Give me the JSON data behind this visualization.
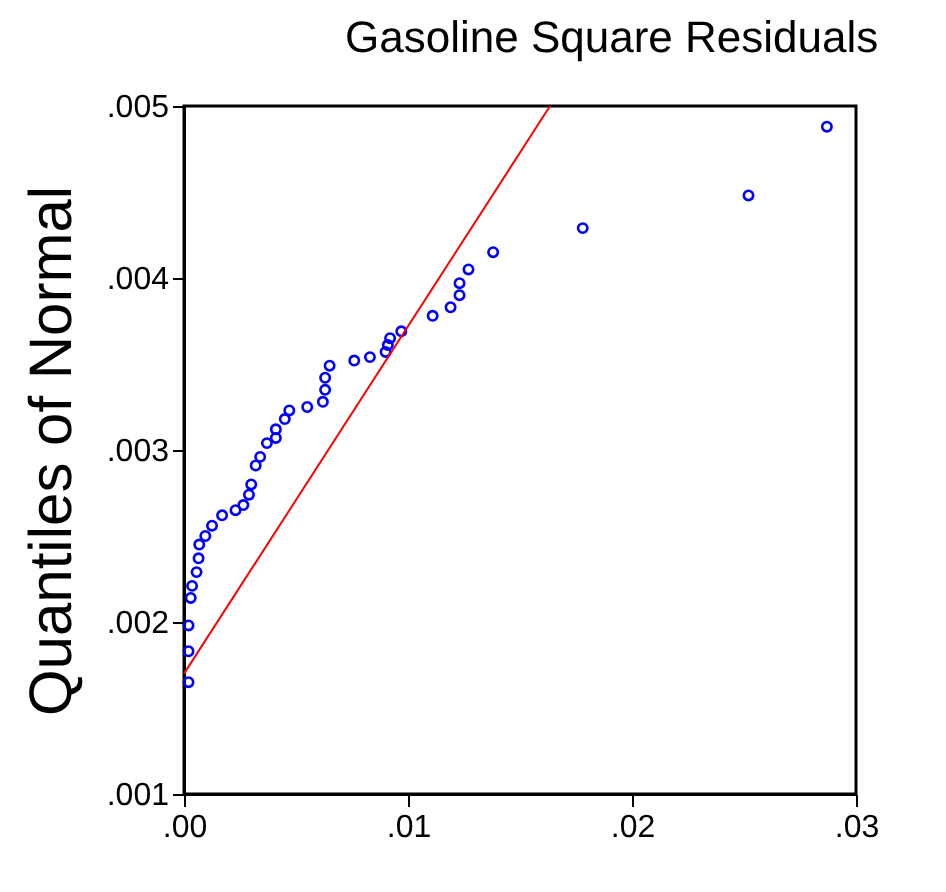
{
  "chart_data": {
    "type": "scatter",
    "title": "Gasoline Square Residuals",
    "ylabel": "Quantiles of Normal",
    "xlim": [
      0,
      0.03
    ],
    "ylim": [
      0.001,
      0.005
    ],
    "xticks": [
      {
        "value": 0,
        "label": ".00"
      },
      {
        "value": 0.01,
        "label": ".01"
      },
      {
        "value": 0.02,
        "label": ".02"
      },
      {
        "value": 0.03,
        "label": ".03"
      }
    ],
    "yticks": [
      {
        "value": 0.001,
        "label": ".001"
      },
      {
        "value": 0.002,
        "label": ".002"
      },
      {
        "value": 0.003,
        "label": ".003"
      },
      {
        "value": 0.004,
        "label": ".004"
      },
      {
        "value": 0.005,
        "label": ".005"
      }
    ],
    "grid": false,
    "series": [
      {
        "marker": "circle",
        "color": "#0000ff",
        "x": [
          0.0002,
          0.0002,
          0.0002,
          0.0003,
          0.00036,
          0.00056,
          0.00065,
          0.00068,
          0.00095,
          0.00125,
          0.0017,
          0.0023,
          0.00265,
          0.0029,
          0.003,
          0.0032,
          0.0034,
          0.0037,
          0.0041,
          0.0041,
          0.0045,
          0.0047,
          0.0055,
          0.0062,
          0.0063,
          0.0063,
          0.0065,
          0.0076,
          0.0083,
          0.009,
          0.0091,
          0.0092,
          0.0097,
          0.0111,
          0.0119,
          0.0123,
          0.0123,
          0.0127,
          0.0138,
          0.0178,
          0.0252,
          0.0287
        ],
        "values": [
          0.00165,
          0.00183,
          0.00198,
          0.00214,
          0.00221,
          0.00229,
          0.00237,
          0.00245,
          0.0025,
          0.00256,
          0.00262,
          0.00265,
          0.00268,
          0.00274,
          0.0028,
          0.00291,
          0.00296,
          0.00304,
          0.00307,
          0.00312,
          0.00318,
          0.00323,
          0.00325,
          0.00328,
          0.00335,
          0.00342,
          0.00349,
          0.00352,
          0.00354,
          0.00357,
          0.00361,
          0.00365,
          0.00369,
          0.00378,
          0.00383,
          0.0039,
          0.00397,
          0.00405,
          0.00415,
          0.00429,
          0.00448,
          0.00488
        ]
      },
      {
        "type": "line",
        "color": "#ff0000",
        "x": [
          0,
          0.01634
        ],
        "values": [
          0.0017,
          0.005
        ]
      }
    ]
  }
}
